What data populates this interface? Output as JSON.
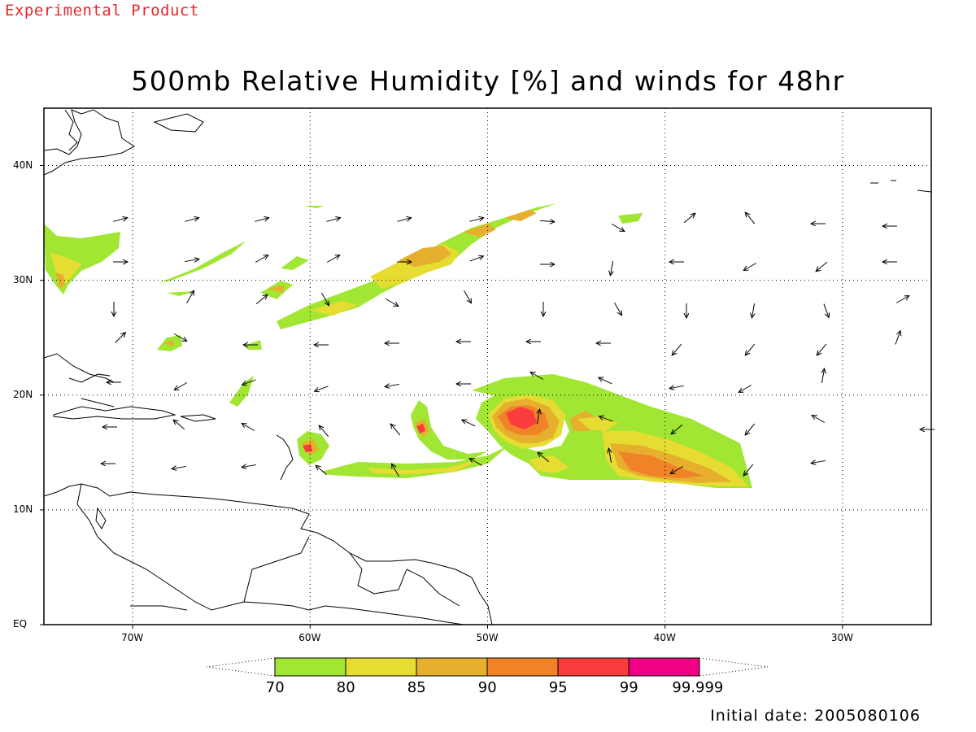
{
  "header": {
    "product_tag": "Experimental Product",
    "title": "500mb Relative Humidity [%] and winds for 48hr"
  },
  "map": {
    "lon_range": [
      -75,
      -25
    ],
    "lat_range": [
      0,
      45
    ],
    "lon_ticks": [
      {
        "lon": -70,
        "label": "70W"
      },
      {
        "lon": -60,
        "label": "60W"
      },
      {
        "lon": -50,
        "label": "50W"
      },
      {
        "lon": -40,
        "label": "40W"
      },
      {
        "lon": -30,
        "label": "30W"
      }
    ],
    "lat_ticks": [
      {
        "lat": 0,
        "label": "EQ"
      },
      {
        "lat": 10,
        "label": "10N"
      },
      {
        "lat": 20,
        "label": "20N"
      },
      {
        "lat": 30,
        "label": "30N"
      },
      {
        "lat": 40,
        "label": "40N"
      }
    ],
    "grid": "dotted"
  },
  "colorbar": {
    "bins": [
      {
        "color": "#a0e632"
      },
      {
        "color": "#e6dc32"
      },
      {
        "color": "#e6af2d"
      },
      {
        "color": "#f08228"
      },
      {
        "color": "#fa3c3c"
      },
      {
        "color": "#f00082"
      }
    ],
    "labels": [
      "70",
      "80",
      "85",
      "90",
      "95",
      "99",
      "99.999"
    ]
  },
  "footer": {
    "initial_date": "Initial date: 2005080106"
  }
}
